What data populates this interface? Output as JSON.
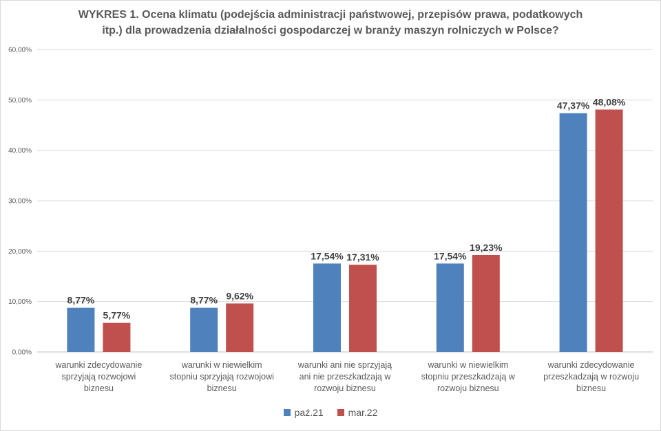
{
  "chart_data": {
    "type": "bar",
    "title": "WYKRES 1. Ocena klimatu (podejścia administracji państwowej, przepisów prawa, podatkowych itp.) dla prowadzenia działalności gospodarczej w branży maszyn rolniczych w Polsce?",
    "title_lines": [
      "WYKRES 1. Ocena klimatu (podejścia administracji państwowej, przepisów prawa, podatkowych",
      "itp.) dla prowadzenia działalności gospodarczej w branży maszyn rolniczych w Polsce?"
    ],
    "categories": [
      [
        "warunki zdecydowanie",
        "sprzyjają rozwojowi",
        "biznesu"
      ],
      [
        "warunki w niewielkim",
        "stopniu sprzyjają rozwojowi",
        "biznesu"
      ],
      [
        "warunki ani nie sprzyjają",
        "ani nie przeszkadzają w",
        "rozwoju biznesu"
      ],
      [
        "warunki w niewielkim",
        "stopniu przeszkadzają w",
        "rozwoju biznesu"
      ],
      [
        "warunki zdecydowanie",
        "przeszkadzają w rozwoju",
        "biznesu"
      ]
    ],
    "series": [
      {
        "name": "paź.21",
        "color": "#4f81bd",
        "values": [
          8.77,
          8.77,
          17.54,
          17.54,
          47.37
        ],
        "labels": [
          "8,77%",
          "8,77%",
          "17,54%",
          "17,54%",
          "47,37%"
        ]
      },
      {
        "name": "mar.22",
        "color": "#c0504d",
        "values": [
          5.77,
          9.62,
          17.31,
          19.23,
          48.08
        ],
        "labels": [
          "5,77%",
          "9,62%",
          "17,31%",
          "19,23%",
          "48,08%"
        ]
      }
    ],
    "ylim": [
      0,
      60
    ],
    "yticks": [
      {
        "value": 0,
        "label": "0,00%"
      },
      {
        "value": 10,
        "label": "10,00%"
      },
      {
        "value": 20,
        "label": "20,00%"
      },
      {
        "value": 30,
        "label": "30,00%"
      },
      {
        "value": 40,
        "label": "40,00%"
      },
      {
        "value": 50,
        "label": "50,00%"
      },
      {
        "value": 60,
        "label": "60,00%"
      }
    ],
    "grid": true,
    "legend_position": "bottom"
  }
}
